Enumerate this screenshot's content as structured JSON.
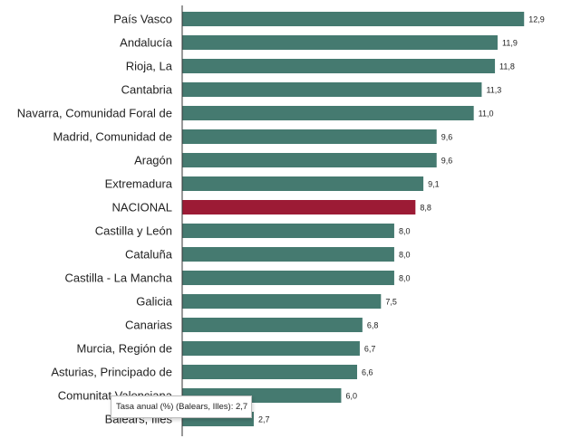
{
  "chart_data": {
    "type": "bar",
    "orientation": "horizontal",
    "categories": [
      "País Vasco",
      "Andalucía",
      "Rioja, La",
      "Cantabria",
      "Navarra, Comunidad Foral de",
      "Madrid, Comunidad de",
      "Aragón",
      "Extremadura",
      "NACIONAL",
      "Castilla y León",
      "Cataluña",
      "Castilla - La Mancha",
      "Galicia",
      "Canarias",
      "Murcia, Región de",
      "Asturias, Principado de",
      "Comunitat Valenciana",
      "Balears, Illes"
    ],
    "values": [
      12.9,
      11.9,
      11.8,
      11.3,
      11.0,
      9.6,
      9.6,
      9.1,
      8.8,
      8.0,
      8.0,
      8.0,
      7.5,
      6.8,
      6.7,
      6.6,
      6.0,
      2.7
    ],
    "value_labels": [
      "12,9",
      "11,9",
      "11,8",
      "11,3",
      "11,0",
      "9,6",
      "9,6",
      "9,1",
      "8,8",
      "8,0",
      "8,0",
      "8,0",
      "7,5",
      "6,8",
      "6,7",
      "6,6",
      "6,0",
      "2,7"
    ],
    "xlim": [
      0,
      13.2
    ],
    "grid": false,
    "colors": {
      "bar": "#457a70",
      "highlight": "#9c1b35",
      "axis": "#333333"
    },
    "highlight_category": "NACIONAL"
  },
  "tooltip": {
    "text": "Tasa anual (%) (Balears, Illes): 2,7"
  }
}
